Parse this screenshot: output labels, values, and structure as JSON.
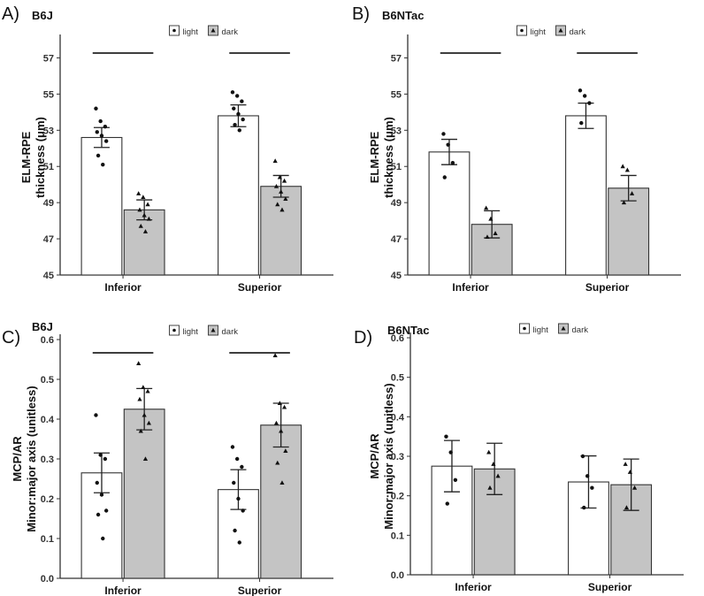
{
  "chart_data": [
    {
      "panel": "A)",
      "title": "B6J",
      "type": "bar",
      "ylabel_line1": "ELM-RPE",
      "ylabel_line2": "thickness (μm)",
      "ylim": [
        45,
        58
      ],
      "yticks": [
        45,
        47,
        49,
        51,
        53,
        55,
        57
      ],
      "categories": [
        "Inferior",
        "Superior"
      ],
      "legend": [
        "light",
        "dark"
      ],
      "significance_bars": true,
      "series": [
        {
          "name": "light",
          "values": [
            52.6,
            53.8
          ],
          "err": [
            0.55,
            0.6
          ],
          "points": [
            [
              54.2,
              53.5,
              53.2,
              52.9,
              52.7,
              52.4,
              51.6,
              51.1
            ],
            [
              55.1,
              54.9,
              54.6,
              54.2,
              53.9,
              53.6,
              53.3,
              53.0
            ]
          ]
        },
        {
          "name": "dark",
          "values": [
            48.6,
            49.9
          ],
          "err": [
            0.55,
            0.6
          ],
          "points": [
            [
              49.5,
              49.3,
              48.9,
              48.6,
              48.3,
              48.1,
              47.7,
              47.4
            ],
            [
              51.3,
              50.4,
              50.2,
              49.9,
              49.6,
              49.2,
              48.9,
              48.6
            ]
          ]
        }
      ]
    },
    {
      "panel": "B)",
      "title": "B6NTac",
      "type": "bar",
      "ylabel_line1": "ELM-RPE",
      "ylabel_line2": "thickness (μm)",
      "ylim": [
        45,
        58
      ],
      "yticks": [
        45,
        47,
        49,
        51,
        53,
        55,
        57
      ],
      "categories": [
        "Inferior",
        "Superior"
      ],
      "legend": [
        "light",
        "dark"
      ],
      "significance_bars": true,
      "series": [
        {
          "name": "light",
          "values": [
            51.8,
            53.8
          ],
          "err": [
            0.7,
            0.7
          ],
          "points": [
            [
              52.8,
              52.2,
              51.2,
              50.4
            ],
            [
              55.2,
              54.9,
              54.5,
              53.4
            ]
          ]
        },
        {
          "name": "dark",
          "values": [
            47.8,
            49.8
          ],
          "err": [
            0.75,
            0.7
          ],
          "points": [
            [
              48.7,
              48.1,
              47.3,
              47.1
            ],
            [
              51.0,
              50.8,
              49.5,
              49.0
            ]
          ]
        }
      ]
    },
    {
      "panel": "C)",
      "title": "B6J",
      "type": "bar",
      "ylabel_line1": "MCP/AR",
      "ylabel_line2": "Minor:major axis (unitless)",
      "ylim": [
        0,
        0.6
      ],
      "yticks": [
        "0.0",
        "0.1",
        "0.2",
        "0.3",
        "0.4",
        "0.5",
        "0.6"
      ],
      "categories": [
        "Inferior",
        "Superior"
      ],
      "legend": [
        "light",
        "dark"
      ],
      "significance_bars": true,
      "series": [
        {
          "name": "light",
          "values": [
            0.265,
            0.223
          ],
          "err": [
            0.05,
            0.05
          ],
          "points": [
            [
              0.41,
              0.31,
              0.3,
              0.24,
              0.21,
              0.17,
              0.16,
              0.1
            ],
            [
              0.33,
              0.3,
              0.28,
              0.24,
              0.2,
              0.17,
              0.12,
              0.09
            ]
          ]
        },
        {
          "name": "dark",
          "values": [
            0.425,
            0.385
          ],
          "err": [
            0.052,
            0.055
          ],
          "points": [
            [
              0.54,
              0.48,
              0.47,
              0.45,
              0.41,
              0.39,
              0.37,
              0.3
            ],
            [
              0.56,
              0.44,
              0.43,
              0.39,
              0.37,
              0.32,
              0.29,
              0.24
            ]
          ]
        }
      ]
    },
    {
      "panel": "D)",
      "title": "B6NTac",
      "type": "bar",
      "ylabel_line1": "MCP/AR",
      "ylabel_line2": "Minor:major axis (unitless)",
      "ylim": [
        0,
        0.6
      ],
      "yticks": [
        "0.0",
        "0.1",
        "0.2",
        "0.3",
        "0.4",
        "0.5",
        "0.6"
      ],
      "categories": [
        "Inferior",
        "Superior"
      ],
      "legend": [
        "light",
        "dark"
      ],
      "significance_bars": false,
      "series": [
        {
          "name": "light",
          "values": [
            0.275,
            0.235
          ],
          "err": [
            0.065,
            0.066
          ],
          "points": [
            [
              0.35,
              0.31,
              0.24,
              0.18
            ],
            [
              0.3,
              0.25,
              0.22,
              0.17
            ]
          ]
        },
        {
          "name": "dark",
          "values": [
            0.268,
            0.228
          ],
          "err": [
            0.065,
            0.065
          ],
          "points": [
            [
              0.31,
              0.28,
              0.25,
              0.22
            ],
            [
              0.28,
              0.26,
              0.22,
              0.17
            ]
          ]
        }
      ]
    }
  ]
}
